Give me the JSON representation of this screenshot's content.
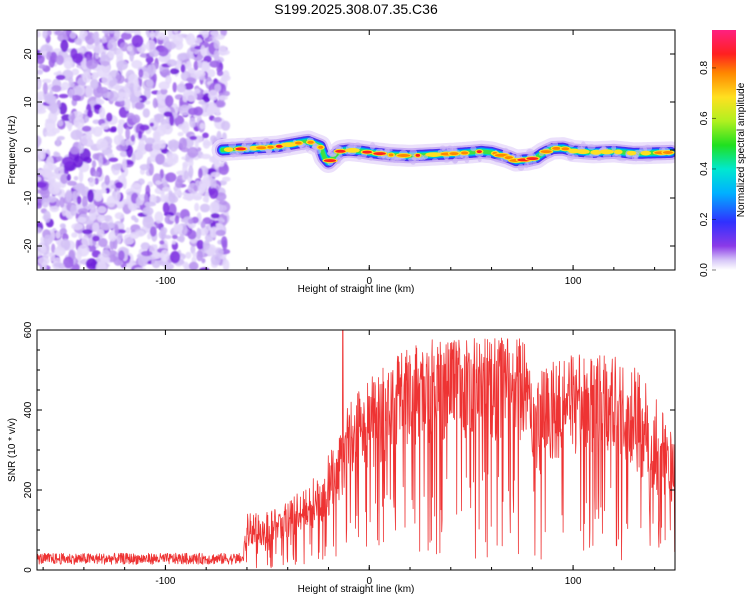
{
  "title": "S199.2025.308.07.35.C36",
  "chart_data": [
    {
      "type": "heatmap",
      "xlabel": "Height of straight line (km)",
      "ylabel": "Frequency (Hz)",
      "xlim": [
        -163,
        150
      ],
      "ylim": [
        -25,
        25
      ],
      "xticks": [
        -100,
        0,
        100
      ],
      "yticks": [
        -20,
        -10,
        0,
        10,
        20
      ],
      "noise_region_x": [
        -163,
        -72
      ],
      "ridge": {
        "x": [
          -72,
          -60,
          -45,
          -37,
          -30,
          -24,
          -22,
          -20,
          -17,
          -14,
          -10,
          -5,
          0,
          10,
          20,
          30,
          40,
          50,
          55,
          60,
          68,
          72,
          78,
          82,
          85,
          90,
          95,
          100,
          110,
          120,
          130,
          140,
          148
        ],
        "frequency": [
          0,
          0.3,
          0.7,
          1.3,
          1.8,
          0.8,
          -1.5,
          -2.5,
          -1.3,
          -0.2,
          0,
          -0.2,
          -0.5,
          -1.0,
          -1.2,
          -1.0,
          -0.8,
          -0.5,
          -0.3,
          -0.5,
          -1.5,
          -2.2,
          -2.0,
          -1.6,
          -0.7,
          0.3,
          0.4,
          -0.2,
          -0.5,
          -0.3,
          -0.7,
          -0.6,
          -0.5
        ]
      },
      "colorbar": {
        "label": "Normalized spectral amplitude",
        "range": [
          0,
          0.95
        ],
        "ticks": [
          0.0,
          0.2,
          0.4,
          0.6,
          0.8
        ]
      }
    },
    {
      "type": "line",
      "xlabel": "Height of straight line (km)",
      "ylabel": "SNR (10 * v/v)",
      "xlim": [
        -163,
        150
      ],
      "ylim": [
        0,
        600
      ],
      "xticks": [
        -100,
        0,
        100
      ],
      "yticks": [
        0,
        200,
        400,
        600
      ],
      "color": "#ee3333",
      "envelope": {
        "x": [
          -163,
          -62,
          -60,
          -50,
          -40,
          -30,
          -22,
          -15,
          -10,
          -5,
          0,
          10,
          20,
          30,
          40,
          50,
          60,
          70,
          78,
          80,
          85,
          90,
          95,
          100,
          110,
          120,
          130,
          140,
          150
        ],
        "median": [
          20,
          20,
          85,
          100,
          125,
          150,
          190,
          250,
          320,
          360,
          380,
          430,
          470,
          490,
          500,
          500,
          495,
          485,
          480,
          400,
          360,
          390,
          420,
          430,
          430,
          420,
          380,
          300,
          230
        ],
        "upper": [
          38,
          38,
          140,
          150,
          175,
          210,
          270,
          330,
          420,
          450,
          480,
          520,
          560,
          580,
          580,
          580,
          580,
          580,
          590,
          480,
          500,
          520,
          530,
          540,
          540,
          540,
          510,
          440,
          320
        ]
      },
      "spike": {
        "x": -13,
        "y": 600
      }
    }
  ]
}
